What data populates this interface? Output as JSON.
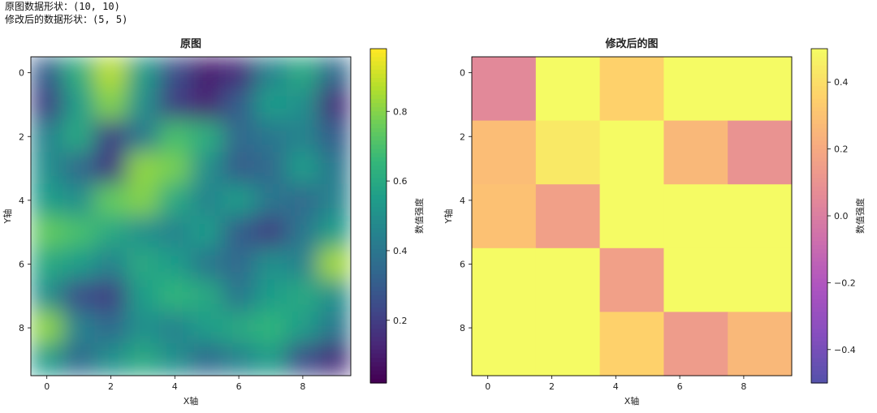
{
  "console": {
    "line1": "原图数据形状：(10, 10)",
    "line2": "修改后的数据形状：(5, 5)"
  },
  "chart_data": [
    {
      "type": "heatmap",
      "title": "原图",
      "xlabel": "X轴",
      "ylabel": "Y轴",
      "interpolation": "bicubic",
      "colormap": "viridis",
      "xticks": [
        0,
        2,
        4,
        6,
        8
      ],
      "yticks": [
        0,
        2,
        4,
        6,
        8
      ],
      "xlim": [
        -0.5,
        9.5
      ],
      "ylim": [
        9.5,
        -0.5
      ],
      "values": [
        [
          0.3,
          0.62,
          0.88,
          0.55,
          0.25,
          0.1,
          0.15,
          0.45,
          0.6,
          0.35
        ],
        [
          0.2,
          0.55,
          0.8,
          0.5,
          0.2,
          0.12,
          0.3,
          0.55,
          0.5,
          0.15
        ],
        [
          0.45,
          0.6,
          0.2,
          0.4,
          0.7,
          0.62,
          0.35,
          0.4,
          0.45,
          0.3
        ],
        [
          0.5,
          0.35,
          0.18,
          0.82,
          0.78,
          0.5,
          0.3,
          0.35,
          0.55,
          0.4
        ],
        [
          0.55,
          0.5,
          0.75,
          0.8,
          0.6,
          0.45,
          0.55,
          0.4,
          0.35,
          0.45
        ],
        [
          0.75,
          0.7,
          0.6,
          0.5,
          0.45,
          0.55,
          0.3,
          0.2,
          0.4,
          0.55
        ],
        [
          0.6,
          0.55,
          0.45,
          0.6,
          0.55,
          0.4,
          0.35,
          0.5,
          0.45,
          0.85
        ],
        [
          0.5,
          0.25,
          0.2,
          0.55,
          0.65,
          0.6,
          0.4,
          0.55,
          0.6,
          0.5
        ],
        [
          0.82,
          0.45,
          0.35,
          0.5,
          0.45,
          0.55,
          0.6,
          0.65,
          0.55,
          0.4
        ],
        [
          0.55,
          0.35,
          0.5,
          0.6,
          0.5,
          0.35,
          0.45,
          0.55,
          0.25,
          0.15
        ]
      ],
      "colorbar": {
        "label": "数值强度",
        "ticks": [
          0.2,
          0.4,
          0.6,
          0.8
        ],
        "range": [
          0.02,
          0.98
        ]
      }
    },
    {
      "type": "heatmap",
      "title": "修改后的图",
      "xlabel": "X轴",
      "ylabel": "Y轴",
      "interpolation": "nearest",
      "colormap": "plasma",
      "alpha": 0.7,
      "xticks": [
        0,
        2,
        4,
        6,
        8
      ],
      "yticks": [
        0,
        2,
        4,
        6,
        8
      ],
      "xlim": [
        -0.5,
        9.5
      ],
      "ylim": [
        9.5,
        -0.5
      ],
      "values": [
        [
          0.05,
          0.5,
          0.36,
          0.5,
          0.5
        ],
        [
          0.28,
          0.44,
          0.5,
          0.26,
          0.1
        ],
        [
          0.3,
          0.16,
          0.5,
          0.5,
          0.5
        ],
        [
          0.5,
          0.5,
          0.16,
          0.5,
          0.5
        ],
        [
          0.5,
          0.5,
          0.36,
          0.14,
          0.26
        ]
      ],
      "colorbar": {
        "label": "数值强度",
        "ticks": [
          0.4,
          0.2,
          0.0,
          -0.2,
          -0.4
        ],
        "range": [
          -0.5,
          0.5
        ]
      }
    }
  ]
}
